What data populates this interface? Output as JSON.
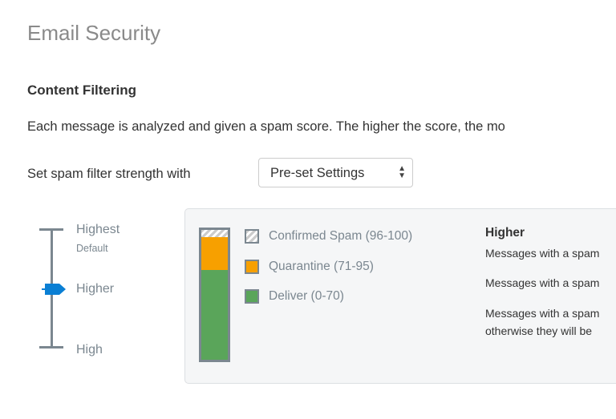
{
  "page": {
    "title": "Email Security"
  },
  "section": {
    "title": "Content Filtering",
    "description": "Each message is analyzed and given a spam score. The higher the score, the mo"
  },
  "strength": {
    "label": "Set spam filter strength with",
    "select_value": "Pre-set Settings"
  },
  "slider": {
    "levels": [
      "Highest",
      "Higher",
      "High"
    ],
    "default_note": "Default",
    "selected": "Higher"
  },
  "legend": [
    {
      "label": "Confirmed Spam (96-100)",
      "color": "#cccccc"
    },
    {
      "label": "Quarantine (71-95)",
      "color": "#f7a000"
    },
    {
      "label": "Deliver (0-70)",
      "color": "#5aa55a"
    }
  ],
  "details": {
    "heading": "Higher",
    "lines": [
      "Messages with a spam",
      "Messages with a spam",
      "Messages with a spam",
      "otherwise they will be"
    ]
  },
  "colors": {
    "accent": "#0a7fd4"
  }
}
